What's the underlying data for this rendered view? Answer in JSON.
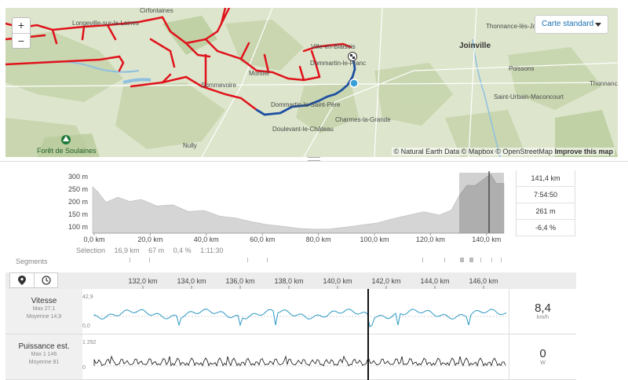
{
  "map": {
    "zoom_in": "+",
    "zoom_out": "−",
    "map_type": "Carte standard",
    "attribution": "© Natural Earth Data © Mapbox © OpenStreetMap",
    "improve": "Improve this map",
    "places": [
      "Cirfontaines",
      "Longeville-sur-la-Laines",
      "Sommevoire",
      "Montiel",
      "Ville-en-Blaisois",
      "Dommartin-le-Franc",
      "Dommartin-le-Saint-Père",
      "Doulevant-le-Château",
      "Charmes-la-Grande",
      "Nully",
      "Forêt de Soulaines",
      "Thonnance-lès-Joinville",
      "Joinville",
      "Poissons",
      "Saint-Urbain-Maconcourt",
      "Thonnance-les-Moulins"
    ],
    "colors": {
      "route": "#e0121b",
      "track": "#1e4fa0",
      "current": "#3a9fd6"
    }
  },
  "profile": {
    "y_labels": [
      "300 m",
      "250 m",
      "200 m",
      "150 m",
      "100 m"
    ],
    "x_labels": [
      "0,0 km",
      "20,0 km",
      "40,0 km",
      "60,0 km",
      "80,0 km",
      "100,0 km",
      "120,0 km",
      "140,0 km"
    ],
    "selection_label": "Sélection",
    "selection": [
      "16,9 km",
      "67 m",
      "0,4 %",
      "1:11:30"
    ],
    "stats": [
      "141,4 km",
      "7:54:50",
      "261 m",
      "-6,4 %"
    ],
    "segments_label": "Segments"
  },
  "detail": {
    "x_labels": [
      "132,0 km",
      "134,0 km",
      "136,0 km",
      "138,0 km",
      "140,0 km",
      "142,0 km",
      "144,0 km",
      "146,0 km"
    ],
    "speed": {
      "title": "Vitesse",
      "max": "Max 27,1",
      "avg": "Moyenne 14,9",
      "ymax": "42,9",
      "ymin": "0,0",
      "value": "8,4",
      "unit": "km/h",
      "color": "#2e9ac4"
    },
    "power": {
      "title": "Puissance est.",
      "max": "Max 1 146",
      "avg": "Moyenne 81",
      "ymax": "1 292",
      "ymin": "0",
      "value": "0",
      "unit": "W",
      "color": "#111111"
    }
  },
  "icons": [
    "pin-icon",
    "clock-icon"
  ]
}
